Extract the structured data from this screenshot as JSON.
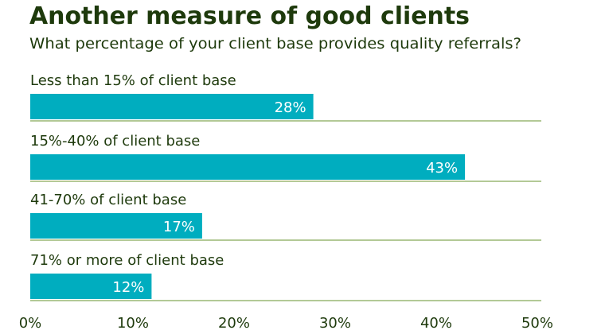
{
  "chart_data": {
    "type": "bar",
    "orientation": "horizontal",
    "title": "Another measure of good clients",
    "subtitle": "What percentage of your client base provides quality referrals?",
    "categories": [
      "Less than 15% of client base",
      "15%-40% of client base",
      "41-70% of client base",
      "71% or more of client base"
    ],
    "values": [
      28,
      43,
      17,
      12
    ],
    "value_labels": [
      "28%",
      "43%",
      "17%",
      "12%"
    ],
    "xlim": [
      0,
      50
    ],
    "xticks": [
      0,
      10,
      20,
      30,
      40,
      50
    ],
    "xtick_labels": [
      "0%",
      "10%",
      "20%",
      "30%",
      "40%",
      "50%"
    ],
    "xlabel": "",
    "ylabel": "",
    "grid": false,
    "colors": {
      "bar": "#00adbf",
      "baseline": "#b3c996",
      "text": "#1e3a0c"
    }
  }
}
